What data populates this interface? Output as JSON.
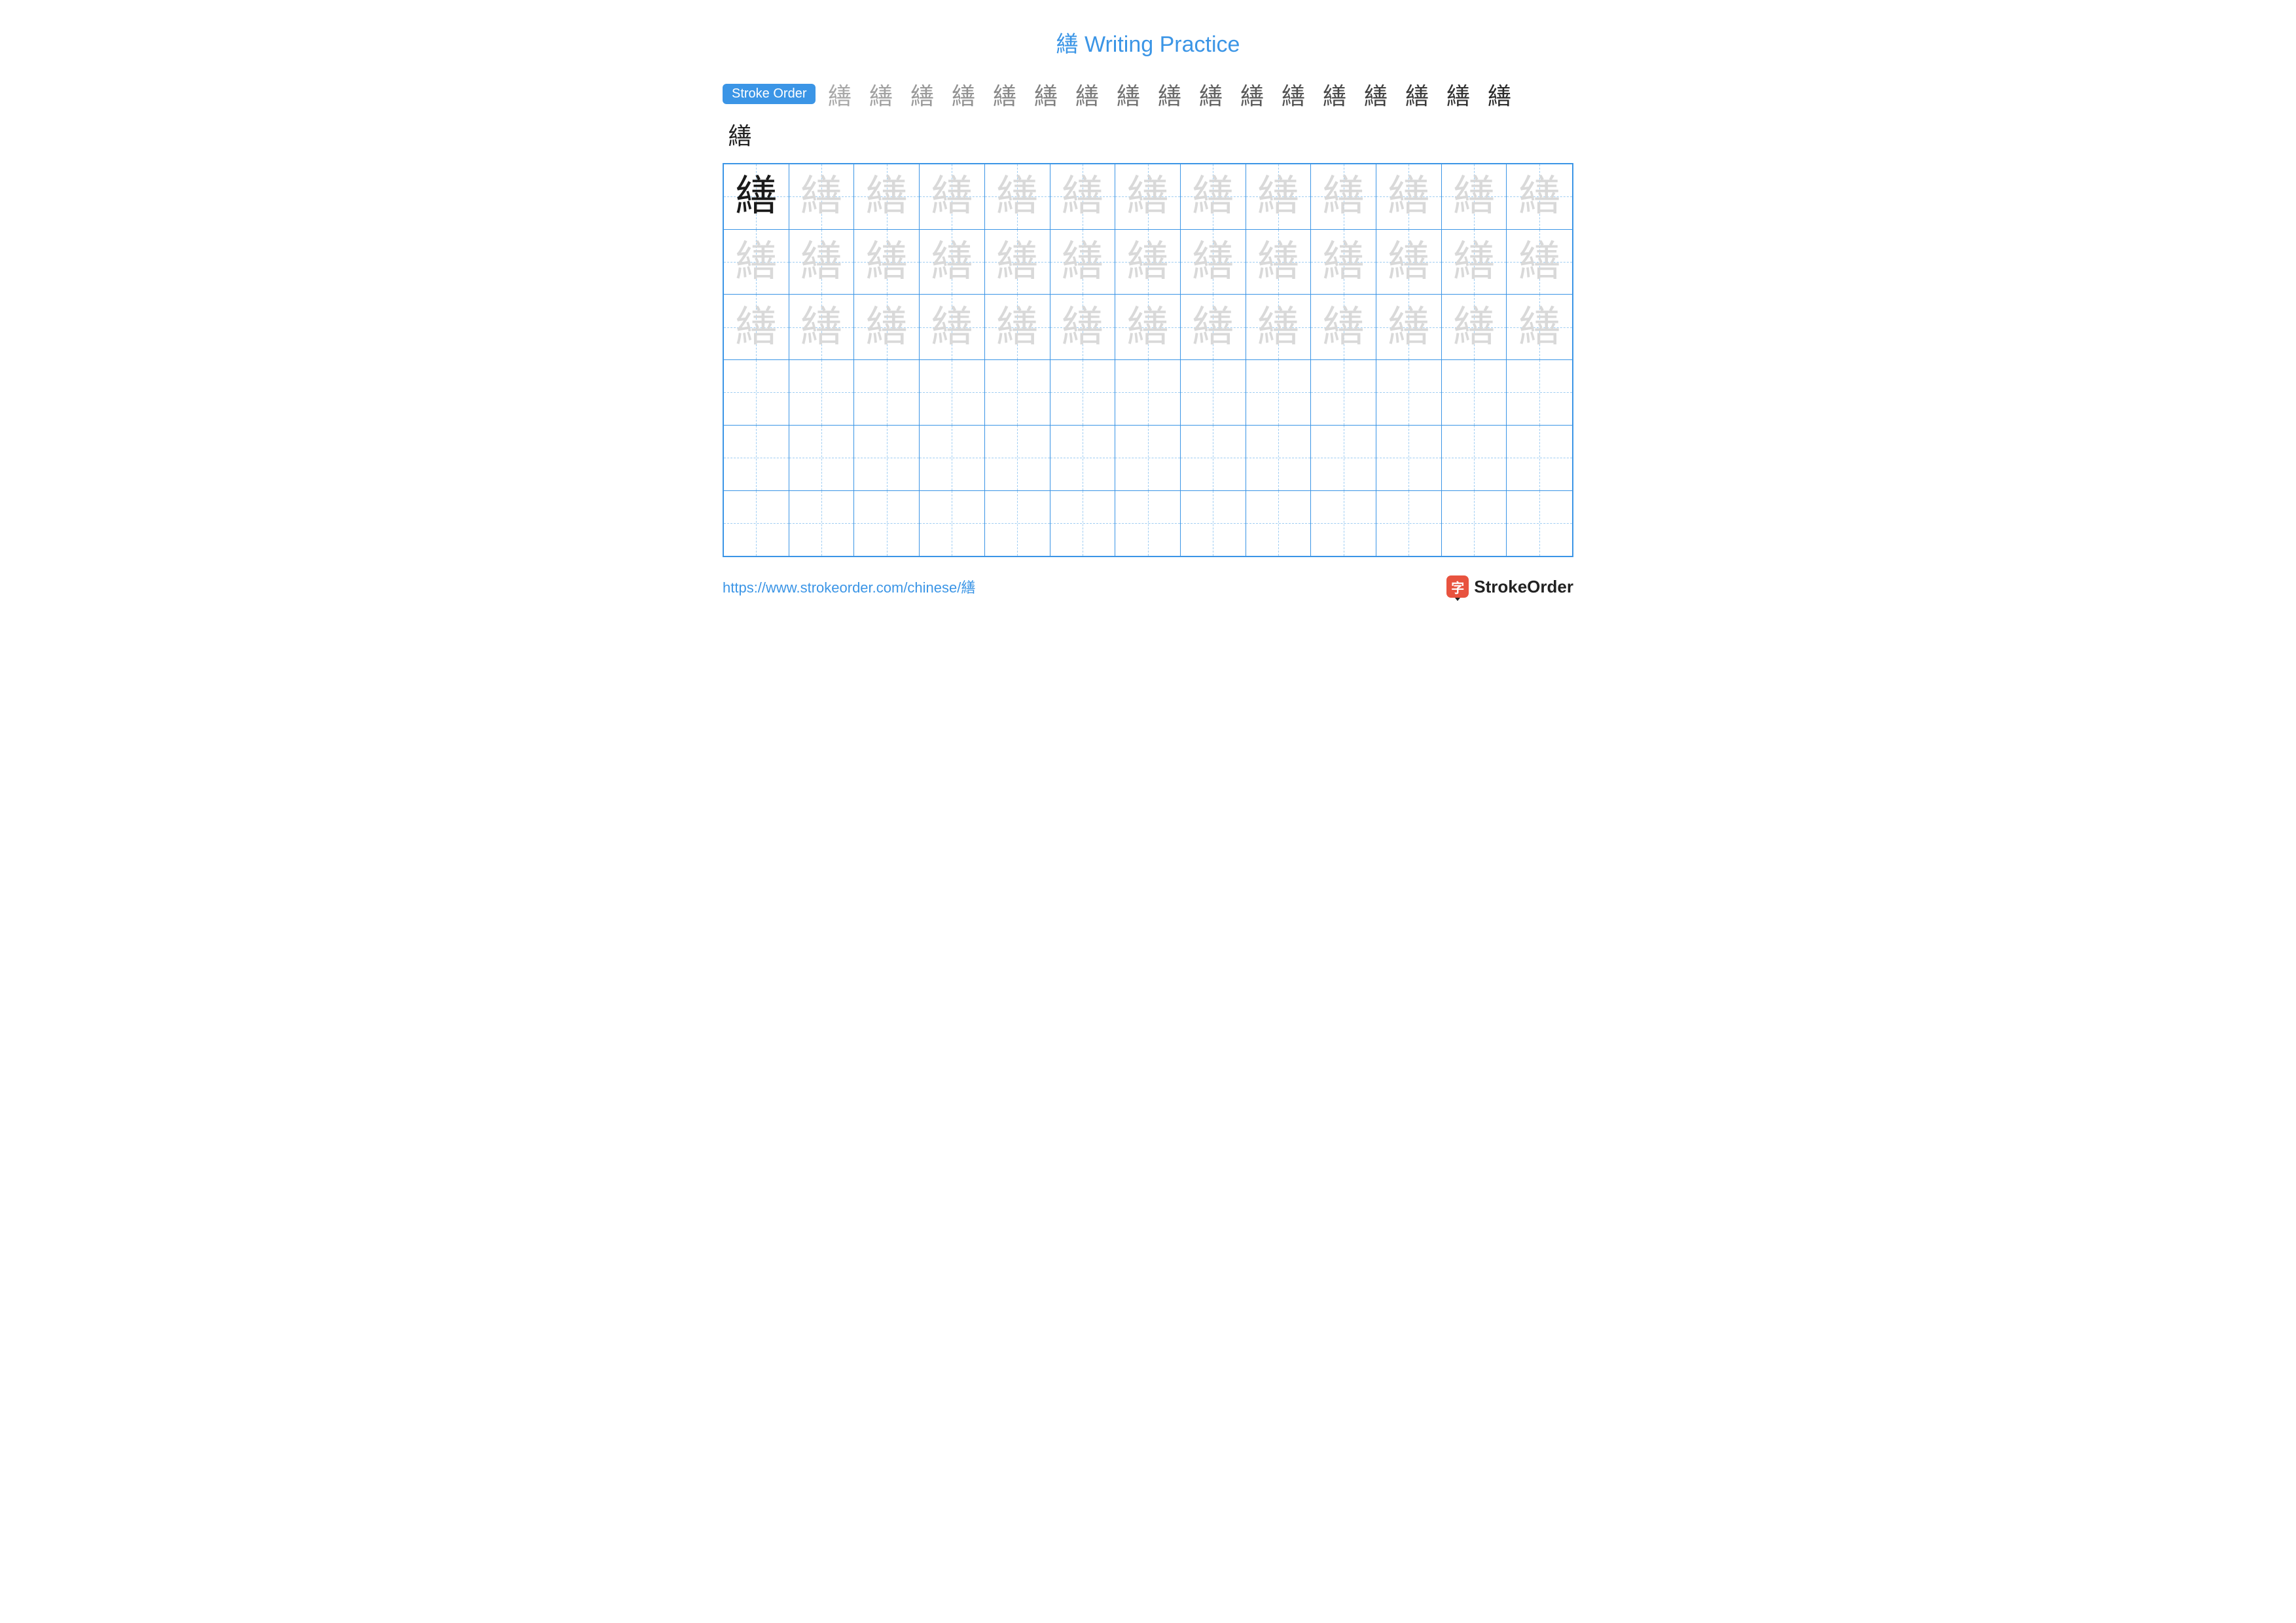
{
  "title": "繕 Writing Practice",
  "character": "繕",
  "stroke_order": {
    "label": "Stroke Order",
    "label_bg": "#3b95e6",
    "steps_count": 18,
    "step_char": "繕",
    "step_color": "#222222",
    "highlight_color": "#d63b3b"
  },
  "grid": {
    "cols": 13,
    "rows": 6,
    "border_color": "#3b95e6",
    "guide_color": "#9fcdf2",
    "model_rows": 3,
    "model_char": "繕",
    "solid_color": "#1a1a1a",
    "trace_color": "#d9d9d9",
    "cell_font_size": 64
  },
  "footer": {
    "url": "https://www.strokeorder.com/chinese/繕",
    "url_color": "#3b95e6",
    "brand": "StrokeOrder",
    "logo_char": "字",
    "logo_bg": "#e8533f"
  },
  "colors": {
    "title": "#3b95e6",
    "background": "#ffffff"
  }
}
